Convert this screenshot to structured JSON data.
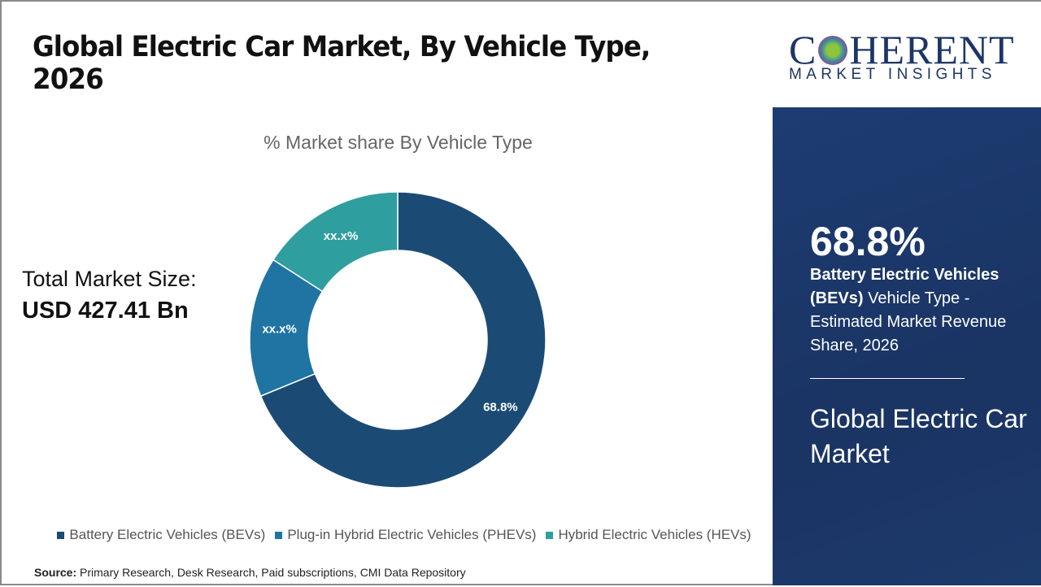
{
  "header": {
    "title": "Global Electric Car Market, By Vehicle Type, 2026"
  },
  "total": {
    "label": "Total Market Size:",
    "value": "USD 427.41 Bn"
  },
  "chart_data": {
    "type": "pie",
    "donut": true,
    "title": "% Market share By Vehicle Type",
    "categories": [
      "Battery Electric Vehicles (BEVs)",
      "Plug-in Hybrid Electric Vehicles (PHEVs)",
      "Hybrid Electric Vehicles (HEVs)"
    ],
    "values": [
      68.8,
      15.3,
      15.9
    ],
    "data_labels": [
      "68.8%",
      "xx.x%",
      "xx.x%"
    ],
    "colors": [
      "#1b4b75",
      "#1f74a3",
      "#2e9f9e"
    ],
    "legend_position": "bottom"
  },
  "source": {
    "label": "Source:",
    "text": " Primary Research, Desk Research, Paid subscriptions, CMI Data Repository"
  },
  "logo": {
    "main": "COHERENT",
    "sub": "MARKET INSIGHTS"
  },
  "panel": {
    "percent": "68.8%",
    "desc_bold": "Battery Electric Vehicles (BEVs)",
    "desc_rest": " Vehicle Type - Estimated Market Revenue Share, 2026",
    "market": "Global Electric Car Market"
  }
}
